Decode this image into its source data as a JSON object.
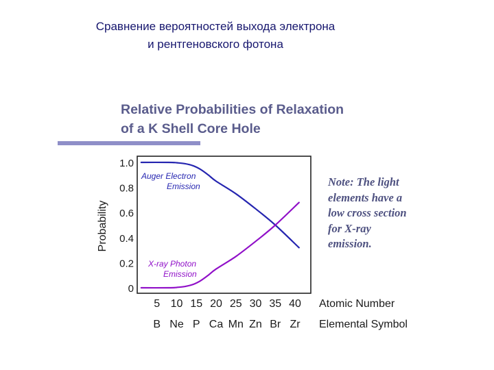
{
  "slide": {
    "heading_line1": "Сравнение вероятностей выхода электрона",
    "heading_line2": "и рентгеновского фотона"
  },
  "note": {
    "lines": [
      "Note: The light",
      "elements have a",
      "low cross section",
      "for X-ray",
      "emission."
    ]
  },
  "chart_data": {
    "type": "line",
    "title": [
      "Relative Probabilities of Relaxation",
      "of a K Shell Core Hole"
    ],
    "ylabel": "Probability",
    "xlabel": "Atomic Number",
    "xlabel2": "Elemental Symbol",
    "xlim": [
      0,
      44
    ],
    "ylim": [
      0,
      1.05
    ],
    "y_ticks": [
      {
        "value": 1.0,
        "label": "1.0"
      },
      {
        "value": 0.8,
        "label": "0.8"
      },
      {
        "value": 0.6,
        "label": "0.6"
      },
      {
        "value": 0.4,
        "label": "0.4"
      },
      {
        "value": 0.2,
        "label": "0.2"
      },
      {
        "value": 0,
        "label": "0"
      }
    ],
    "x_ticks": [
      {
        "value": 5,
        "label": "5",
        "symbol": "B"
      },
      {
        "value": 10,
        "label": "10",
        "symbol": "Ne"
      },
      {
        "value": 15,
        "label": "15",
        "symbol": "P"
      },
      {
        "value": 20,
        "label": "20",
        "symbol": "Ca"
      },
      {
        "value": 25,
        "label": "25",
        "symbol": "Mn"
      },
      {
        "value": 30,
        "label": "30",
        "symbol": "Zn"
      },
      {
        "value": 35,
        "label": "35",
        "symbol": "Br"
      },
      {
        "value": 40,
        "label": "40",
        "symbol": "Zr"
      }
    ],
    "series": [
      {
        "name": "Auger Electron Emission",
        "label_lines": [
          "Auger  Electron",
          "Emission"
        ],
        "color": "#2525b0",
        "x": [
          1,
          8,
          10,
          12,
          14,
          16,
          18,
          20,
          25,
          30,
          35,
          41
        ],
        "y": [
          1.0,
          1.0,
          0.997,
          0.99,
          0.975,
          0.945,
          0.9,
          0.85,
          0.75,
          0.63,
          0.5,
          0.32
        ]
      },
      {
        "name": "X-ray Photon Emission",
        "label_lines": [
          "X-ray Photon",
          "Emission"
        ],
        "color": "#9010c8",
        "x": [
          1,
          8,
          10,
          12,
          14,
          16,
          18,
          20,
          25,
          30,
          35,
          41
        ],
        "y": [
          0.0,
          0.0,
          0.003,
          0.01,
          0.025,
          0.055,
          0.1,
          0.15,
          0.25,
          0.37,
          0.5,
          0.68
        ]
      }
    ],
    "grid": false
  }
}
